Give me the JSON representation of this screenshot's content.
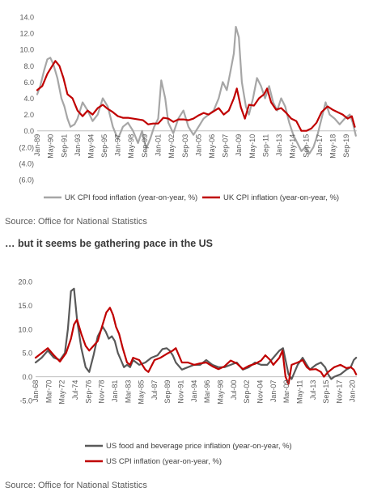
{
  "texts": {
    "source_1": "Source: Office for National Statistics",
    "subhead": "… but it seems be gathering pace in the US",
    "source_2": "Source: Office for National Statistics"
  },
  "chart_data": [
    {
      "type": "line",
      "title": "",
      "xlabel": "",
      "ylabel": "",
      "xlim": [
        1989.0,
        2020.7
      ],
      "ylim": [
        -6,
        14
      ],
      "y_tick_labels": [
        "14.0",
        "12.0",
        "10.0",
        "8.0",
        "6.0",
        "4.0",
        "2.0",
        "0.0",
        "(2.0)",
        "(4.0)",
        "(6.0)"
      ],
      "y_tick_values": [
        14,
        12,
        10,
        8,
        6,
        4,
        2,
        0,
        -2,
        -4,
        -6
      ],
      "x_tick_labels": [
        "Jan-89",
        "May-90",
        "Sep-91",
        "Jan-93",
        "May-94",
        "Sep-95",
        "Jan-97",
        "May-98",
        "Sep-99",
        "Jan-01",
        "May-02",
        "Sep-03",
        "Jan-05",
        "May-06",
        "Sep-07",
        "Jan-09",
        "May-10",
        "Sep-11",
        "Jan-13",
        "May-14",
        "Sep-15",
        "Jan-17",
        "May-18",
        "Sep-19"
      ],
      "x_tick_values": [
        1989.0,
        1990.33,
        1991.67,
        1993.0,
        1994.33,
        1995.67,
        1997.0,
        1998.33,
        1999.67,
        2001.0,
        2002.33,
        2003.67,
        2005.0,
        2006.33,
        2007.67,
        2009.0,
        2010.33,
        2011.67,
        2013.0,
        2014.33,
        2015.67,
        2017.0,
        2018.33,
        2019.67
      ],
      "grid": false,
      "legend": "bottom",
      "series": [
        {
          "name": "UK CPI food inflation (year-on-year, %)",
          "color": "#a6a6a6",
          "x": [
            1989.0,
            1989.3,
            1989.7,
            1990.0,
            1990.3,
            1990.6,
            1991.0,
            1991.4,
            1991.7,
            1992.0,
            1992.3,
            1992.7,
            1993.0,
            1993.5,
            1994.0,
            1994.5,
            1995.0,
            1995.5,
            1996.0,
            1996.5,
            1997.0,
            1997.5,
            1998.0,
            1998.5,
            1999.0,
            1999.4,
            1999.8,
            2000.2,
            2000.6,
            2001.0,
            2001.3,
            2001.7,
            2002.0,
            2002.5,
            2003.0,
            2003.5,
            2004.0,
            2004.5,
            2005.0,
            2005.5,
            2006.0,
            2006.5,
            2007.0,
            2007.4,
            2007.8,
            2008.2,
            2008.5,
            2008.7,
            2009.0,
            2009.3,
            2009.7,
            2010.0,
            2010.4,
            2010.8,
            2011.2,
            2011.6,
            2012.0,
            2012.4,
            2012.8,
            2013.2,
            2013.6,
            2014.0,
            2014.4,
            2014.8,
            2015.2,
            2015.6,
            2016.0,
            2016.4,
            2016.8,
            2017.2,
            2017.6,
            2018.0,
            2018.5,
            2019.0,
            2019.5,
            2020.0,
            2020.3,
            2020.6
          ],
          "y": [
            4.5,
            5.5,
            7.5,
            8.8,
            9.0,
            8.2,
            6.5,
            4.0,
            3.0,
            1.5,
            0.5,
            0.8,
            1.5,
            3.5,
            2.5,
            1.2,
            2.0,
            4.0,
            3.0,
            0.5,
            -1.0,
            0.5,
            1.0,
            0.0,
            -1.5,
            0.0,
            -2.2,
            -1.0,
            0.5,
            1.5,
            6.2,
            4.0,
            1.0,
            -0.3,
            1.5,
            2.5,
            0.5,
            -0.5,
            0.5,
            1.5,
            2.0,
            2.5,
            4.0,
            6.0,
            5.0,
            7.5,
            9.5,
            12.8,
            11.5,
            6.0,
            3.0,
            2.0,
            4.0,
            6.5,
            5.5,
            4.0,
            5.5,
            3.5,
            2.5,
            4.0,
            3.0,
            1.0,
            -0.5,
            -1.5,
            -2.5,
            -2.0,
            -2.8,
            -2.0,
            -0.5,
            1.5,
            3.5,
            2.0,
            1.5,
            0.8,
            1.5,
            2.0,
            1.0,
            -0.6
          ]
        },
        {
          "name": "UK CPI inflation (year-on-year, %)",
          "color": "#c00000",
          "x": [
            1989.0,
            1989.5,
            1990.0,
            1990.4,
            1990.8,
            1991.2,
            1991.6,
            1992.0,
            1992.5,
            1993.0,
            1993.5,
            1994.0,
            1994.5,
            1995.0,
            1995.5,
            1996.0,
            1996.5,
            1997.0,
            1997.5,
            1998.0,
            1998.5,
            1999.0,
            1999.5,
            2000.0,
            2000.5,
            2001.0,
            2001.5,
            2002.0,
            2002.5,
            2003.0,
            2003.5,
            2004.0,
            2004.5,
            2005.0,
            2005.5,
            2006.0,
            2006.5,
            2007.0,
            2007.5,
            2008.0,
            2008.5,
            2008.8,
            2009.2,
            2009.6,
            2010.0,
            2010.5,
            2011.0,
            2011.5,
            2011.8,
            2012.2,
            2012.7,
            2013.2,
            2013.7,
            2014.2,
            2014.7,
            2015.2,
            2015.7,
            2016.2,
            2016.7,
            2017.2,
            2017.8,
            2018.3,
            2018.8,
            2019.3,
            2019.8,
            2020.2,
            2020.5
          ],
          "y": [
            5.0,
            5.5,
            7.0,
            7.8,
            8.6,
            8.0,
            6.5,
            4.5,
            4.0,
            2.5,
            1.8,
            2.5,
            2.0,
            2.8,
            3.2,
            2.7,
            2.3,
            1.8,
            1.6,
            1.6,
            1.5,
            1.4,
            1.3,
            0.8,
            0.9,
            0.9,
            1.6,
            1.5,
            1.1,
            1.4,
            1.4,
            1.3,
            1.5,
            1.9,
            2.2,
            2.0,
            2.4,
            2.8,
            2.0,
            2.5,
            4.0,
            5.2,
            2.9,
            1.5,
            3.2,
            3.1,
            4.0,
            4.5,
            5.2,
            3.5,
            2.6,
            2.8,
            2.2,
            1.5,
            1.2,
            0.0,
            0.0,
            0.3,
            1.0,
            2.3,
            3.0,
            2.6,
            2.3,
            2.0,
            1.5,
            1.8,
            0.5
          ]
        }
      ]
    },
    {
      "type": "line",
      "title": "",
      "xlabel": "",
      "ylabel": "",
      "xlim": [
        1968.0,
        2020.7
      ],
      "ylim": [
        -5,
        20
      ],
      "y_tick_labels": [
        "20.0",
        "15.0",
        "10.0",
        "5.0",
        "0.0",
        "-5.0"
      ],
      "y_tick_values": [
        20,
        15,
        10,
        5,
        0,
        -5
      ],
      "x_tick_labels": [
        "Jan-68",
        "Mar-70",
        "May-72",
        "Jul-74",
        "Sep-76",
        "Nov-78",
        "Jan-81",
        "Mar-83",
        "May-85",
        "Jul-87",
        "Sep-89",
        "Nov-91",
        "Jan-94",
        "Mar-96",
        "May-98",
        "Jul-00",
        "Sep-02",
        "Nov-04",
        "Jan-07",
        "Mar-09",
        "May-11",
        "Jul-13",
        "Sep-15",
        "Nov-17",
        "Jan-20"
      ],
      "x_tick_values": [
        1968.0,
        1970.17,
        1972.33,
        1974.5,
        1976.67,
        1978.83,
        1981.0,
        1983.17,
        1985.33,
        1987.5,
        1989.67,
        1991.83,
        1994.0,
        1996.17,
        1998.33,
        2000.5,
        2002.67,
        2004.83,
        2007.0,
        2009.17,
        2011.33,
        2013.5,
        2015.67,
        2017.83,
        2020.0
      ],
      "grid": false,
      "legend": "bottom",
      "series": [
        {
          "name": "US food and beverage price inflation (year-on-year, %)",
          "color": "#595959",
          "x": [
            1968.0,
            1969.0,
            1970.0,
            1971.0,
            1972.0,
            1972.8,
            1973.3,
            1973.8,
            1974.3,
            1974.8,
            1975.5,
            1976.2,
            1976.8,
            1977.5,
            1978.2,
            1979.0,
            1979.5,
            1980.0,
            1980.5,
            1981.0,
            1981.5,
            1982.0,
            1982.5,
            1983.0,
            1983.5,
            1984.0,
            1985.0,
            1986.0,
            1987.0,
            1988.0,
            1988.8,
            1989.5,
            1990.0,
            1990.5,
            1991.0,
            1992.0,
            1993.0,
            1994.0,
            1995.0,
            1996.0,
            1997.0,
            1998.0,
            1999.0,
            2000.0,
            2001.0,
            2002.0,
            2003.0,
            2004.0,
            2005.0,
            2006.0,
            2007.0,
            2008.0,
            2008.6,
            2009.0,
            2009.5,
            2010.0,
            2011.0,
            2011.8,
            2012.5,
            2013.0,
            2014.0,
            2014.8,
            2015.5,
            2016.0,
            2016.5,
            2017.0,
            2018.0,
            2019.0,
            2019.7,
            2020.2,
            2020.6
          ],
          "y": [
            3.0,
            4.0,
            5.5,
            4.0,
            3.5,
            5.0,
            10.0,
            18.0,
            18.5,
            12.0,
            6.0,
            2.0,
            1.0,
            4.5,
            8.5,
            10.5,
            9.5,
            8.0,
            8.5,
            7.5,
            5.0,
            3.5,
            2.0,
            2.5,
            2.0,
            3.5,
            2.5,
            3.0,
            4.0,
            4.5,
            5.8,
            6.0,
            5.5,
            4.5,
            3.0,
            1.5,
            2.0,
            2.5,
            2.5,
            3.5,
            2.5,
            2.0,
            2.0,
            2.5,
            3.0,
            1.5,
            2.0,
            3.0,
            2.5,
            2.5,
            4.0,
            5.5,
            6.0,
            3.5,
            0.5,
            -0.5,
            2.5,
            4.0,
            2.5,
            1.5,
            2.5,
            3.0,
            2.0,
            0.5,
            -0.5,
            0.0,
            0.5,
            1.5,
            2.0,
            3.5,
            4.0
          ]
        },
        {
          "name": "US CPI inflation (year-on-year, %)",
          "color": "#c00000",
          "x": [
            1968.0,
            1969.0,
            1970.0,
            1971.0,
            1972.0,
            1973.0,
            1973.8,
            1974.3,
            1974.8,
            1975.5,
            1976.2,
            1976.8,
            1977.5,
            1978.2,
            1979.0,
            1979.6,
            1980.2,
            1980.7,
            1981.2,
            1981.7,
            1982.3,
            1983.0,
            1983.5,
            1984.0,
            1985.0,
            1986.0,
            1986.5,
            1987.5,
            1988.5,
            1989.5,
            1990.5,
            1991.0,
            1992.0,
            1993.0,
            1994.0,
            1995.0,
            1996.0,
            1997.0,
            1998.0,
            1999.0,
            2000.0,
            2001.0,
            2002.0,
            2003.0,
            2004.0,
            2005.0,
            2005.7,
            2006.5,
            2007.0,
            2008.0,
            2008.5,
            2009.0,
            2009.5,
            2010.0,
            2011.0,
            2011.8,
            2012.5,
            2013.0,
            2014.0,
            2014.8,
            2015.3,
            2016.0,
            2017.0,
            2018.0,
            2019.0,
            2019.7,
            2020.2,
            2020.6
          ],
          "y": [
            4.0,
            5.0,
            6.0,
            4.5,
            3.2,
            5.0,
            8.0,
            11.0,
            12.0,
            9.0,
            6.5,
            5.5,
            6.5,
            7.5,
            11.0,
            13.5,
            14.5,
            13.0,
            10.5,
            9.0,
            6.0,
            3.0,
            2.5,
            4.0,
            3.5,
            1.5,
            1.0,
            3.5,
            4.0,
            4.8,
            5.5,
            6.0,
            3.0,
            3.0,
            2.5,
            2.8,
            3.0,
            2.2,
            1.6,
            2.2,
            3.4,
            2.8,
            1.6,
            2.3,
            2.7,
            3.4,
            4.5,
            3.5,
            2.5,
            4.0,
            5.5,
            0.0,
            -1.5,
            2.5,
            3.0,
            3.5,
            2.0,
            1.5,
            1.6,
            1.0,
            0.0,
            1.0,
            2.0,
            2.5,
            1.8,
            2.0,
            1.5,
            0.5
          ]
        }
      ]
    }
  ]
}
